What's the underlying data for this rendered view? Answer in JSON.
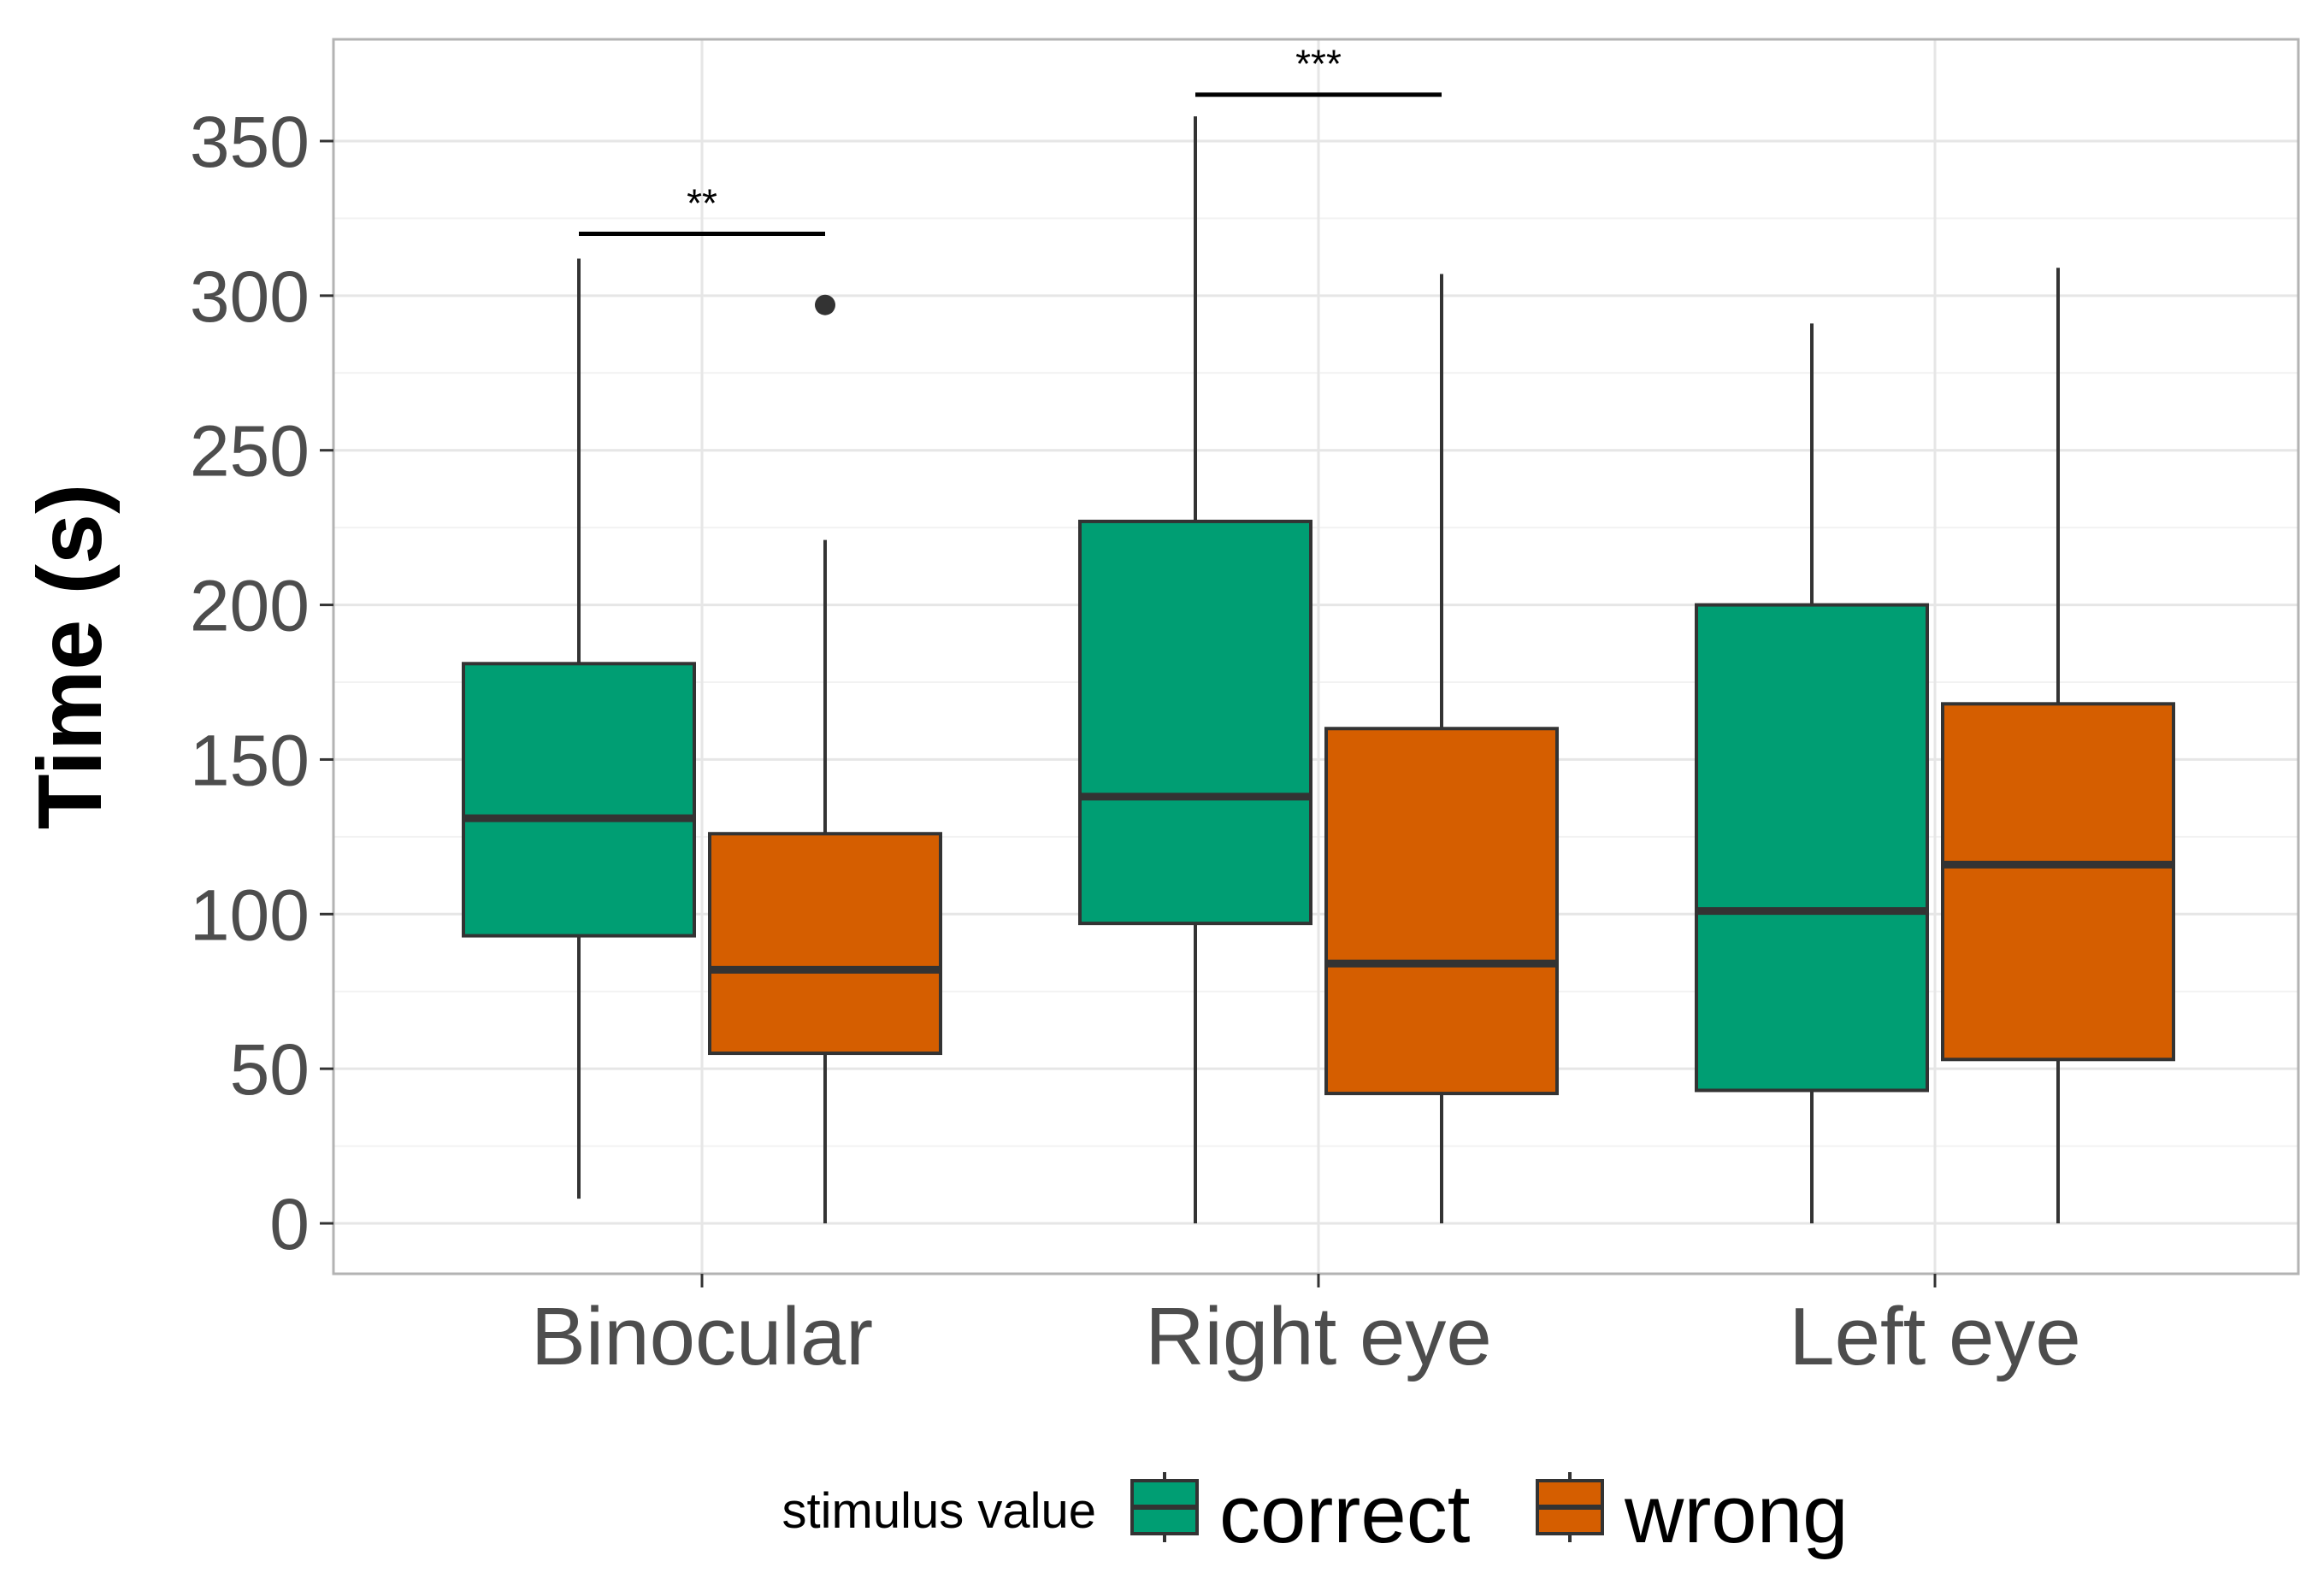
{
  "chart_data": {
    "type": "boxplot",
    "title": "",
    "xlabel": "",
    "ylabel": "Time (s)",
    "ylim": [
      -17,
      380
    ],
    "yticks": [
      0,
      50,
      100,
      150,
      200,
      250,
      300,
      350
    ],
    "grid": true,
    "categories": [
      "Binocular",
      "Right eye",
      "Left eye"
    ],
    "legend": {
      "title": "stimulus value",
      "position": "bottom",
      "entries": [
        "correct",
        "wrong"
      ]
    },
    "series": [
      {
        "name": "correct",
        "color": "#009E73",
        "boxes": [
          {
            "category": "Binocular",
            "min": 8,
            "q1": 93,
            "median": 131,
            "q3": 181,
            "max": 312,
            "outliers": []
          },
          {
            "category": "Right eye",
            "min": 0,
            "q1": 97,
            "median": 138,
            "q3": 227,
            "max": 358,
            "outliers": []
          },
          {
            "category": "Left eye",
            "min": 0,
            "q1": 43,
            "median": 101,
            "q3": 200,
            "max": 291,
            "outliers": []
          }
        ]
      },
      {
        "name": "wrong",
        "color": "#D55E00",
        "boxes": [
          {
            "category": "Binocular",
            "min": 0,
            "q1": 55,
            "median": 82,
            "q3": 126,
            "max": 221,
            "outliers": [
              297
            ]
          },
          {
            "category": "Right eye",
            "min": 0,
            "q1": 42,
            "median": 84,
            "q3": 160,
            "max": 307,
            "outliers": []
          },
          {
            "category": "Left eye",
            "min": 0,
            "q1": 53,
            "median": 116,
            "q3": 168,
            "max": 309,
            "outliers": []
          }
        ]
      }
    ],
    "annotations": [
      {
        "category": "Binocular",
        "label": "**",
        "y": 320
      },
      {
        "category": "Right eye",
        "label": "***",
        "y": 365
      }
    ]
  }
}
